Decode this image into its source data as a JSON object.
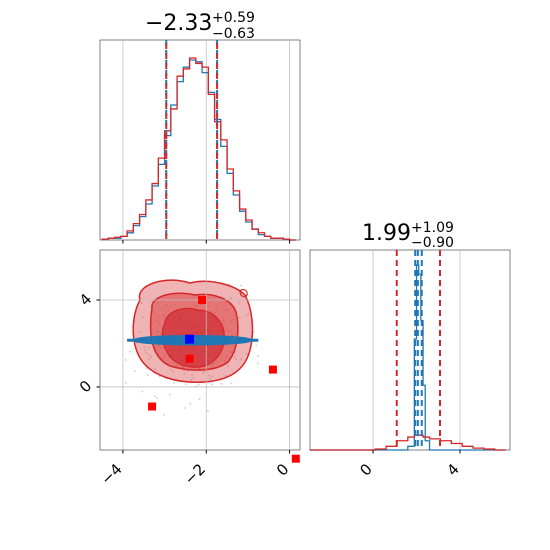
{
  "chart_data": {
    "type": "corner",
    "parameter_titles": [
      {
        "value": "−2.33",
        "upper": "+0.59",
        "lower": "−0.63"
      },
      {
        "value": "1.99",
        "upper": "+1.09",
        "lower": "−0.90"
      }
    ],
    "x_tick_labels": [
      "−4",
      "−2",
      "0"
    ],
    "x2_tick_labels": [
      "0",
      "4"
    ],
    "y_tick_labels": [
      "4",
      "0"
    ],
    "axes": {
      "p1_range": [
        -4.55,
        0.25
      ],
      "p2_range": [
        -2.9,
        6.3
      ],
      "grid": true
    },
    "series": [
      {
        "color": "#1f77b4"
      },
      {
        "color": "#d62728"
      }
    ],
    "hist_p1": {
      "bins": [
        -4.5,
        -4.35,
        -4.2,
        -4.05,
        -3.9,
        -3.75,
        -3.6,
        -3.45,
        -3.3,
        -3.15,
        -3.0,
        -2.85,
        -2.7,
        -2.55,
        -2.4,
        -2.25,
        -2.1,
        -1.95,
        -1.8,
        -1.65,
        -1.5,
        -1.35,
        -1.2,
        -1.05,
        -0.9,
        -0.75,
        -0.6,
        -0.45,
        -0.3,
        -0.15,
        0.0,
        0.15
      ],
      "blue": [
        0.005,
        0.01,
        0.01,
        0.02,
        0.04,
        0.08,
        0.13,
        0.2,
        0.3,
        0.42,
        0.58,
        0.75,
        0.88,
        0.96,
        1.0,
        0.99,
        0.93,
        0.82,
        0.67,
        0.52,
        0.37,
        0.25,
        0.16,
        0.1,
        0.06,
        0.03,
        0.02,
        0.01,
        0.01,
        0.005,
        0.0
      ],
      "red": [
        0.005,
        0.01,
        0.015,
        0.02,
        0.05,
        0.09,
        0.14,
        0.22,
        0.31,
        0.45,
        0.6,
        0.72,
        0.9,
        0.94,
        1.0,
        0.97,
        0.95,
        0.8,
        0.65,
        0.55,
        0.39,
        0.27,
        0.17,
        0.11,
        0.06,
        0.04,
        0.02,
        0.01,
        0.01,
        0.005,
        0.0
      ],
      "quantiles_blue": [
        -2.96,
        -1.74
      ],
      "quantiles_red": [
        -2.96,
        -1.74
      ]
    },
    "hist_p2": {
      "bins": [
        -2.9,
        -2.4,
        -1.9,
        -1.4,
        -0.9,
        -0.4,
        0.1,
        0.6,
        1.1,
        1.6,
        1.9,
        2.0,
        2.1,
        2.2,
        2.3,
        2.4,
        2.6,
        3.1,
        3.6,
        4.1,
        4.6,
        5.1,
        5.6,
        6.1
      ],
      "blue": [
        0,
        0,
        0,
        0,
        0,
        0,
        0,
        0,
        0,
        0.02,
        0.6,
        1.0,
        0.95,
        0.7,
        0.35,
        0.05,
        0,
        0,
        0,
        0,
        0,
        0,
        0
      ],
      "red": [
        0,
        0,
        0,
        0,
        0,
        0,
        0.005,
        0.02,
        0.05,
        0.07,
        0.08,
        0.08,
        0.08,
        0.08,
        0.07,
        0.07,
        0.06,
        0.05,
        0.035,
        0.02,
        0.01,
        0.005,
        0
      ],
      "quantiles_blue": [
        1.94,
        2.06,
        2.24
      ],
      "quantiles_red": [
        1.09,
        1.99,
        3.08
      ]
    },
    "joint": {
      "red_markers": [
        {
          "x": -2.1,
          "y": 4.0
        },
        {
          "x": -2.4,
          "y": 1.3
        },
        {
          "x": -3.3,
          "y": -0.9
        },
        {
          "x": -0.4,
          "y": 0.8
        },
        {
          "x": 0.15,
          "y": -3.3
        }
      ],
      "blue_marker": {
        "x": -2.4,
        "y": 2.2
      },
      "blue_band": {
        "x_range": [
          -3.9,
          -0.75
        ],
        "y": 2.15
      }
    }
  }
}
